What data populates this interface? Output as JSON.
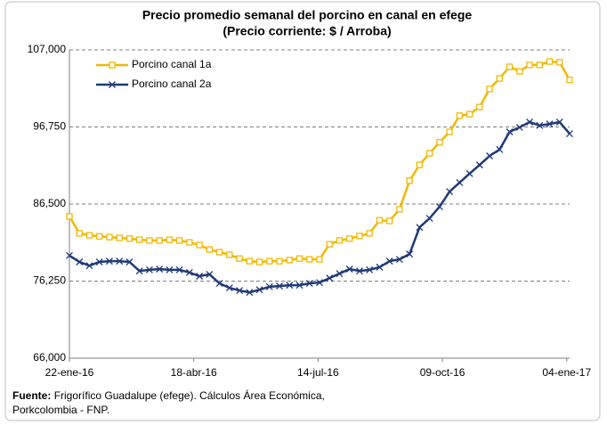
{
  "chart_data": {
    "type": "line",
    "title": [
      "Precio promedio semanal del porcino en canal en efege",
      "(Precio corriente: $ / Arroba)"
    ],
    "x": [
      "2016-01-22",
      "2016-01-29",
      "2016-02-05",
      "2016-02-12",
      "2016-02-19",
      "2016-02-26",
      "2016-03-04",
      "2016-03-11",
      "2016-03-18",
      "2016-03-25",
      "2016-04-01",
      "2016-04-08",
      "2016-04-15",
      "2016-04-22",
      "2016-04-29",
      "2016-05-06",
      "2016-05-13",
      "2016-05-20",
      "2016-05-27",
      "2016-06-03",
      "2016-06-10",
      "2016-06-17",
      "2016-06-24",
      "2016-07-01",
      "2016-07-08",
      "2016-07-15",
      "2016-07-22",
      "2016-07-29",
      "2016-08-05",
      "2016-08-12",
      "2016-08-19",
      "2016-08-26",
      "2016-09-02",
      "2016-09-09",
      "2016-09-16",
      "2016-09-23",
      "2016-09-30",
      "2016-10-07",
      "2016-10-14",
      "2016-10-21",
      "2016-10-28",
      "2016-11-04",
      "2016-11-11",
      "2016-11-18",
      "2016-11-25",
      "2016-12-02",
      "2016-12-09",
      "2016-12-16",
      "2016-12-23",
      "2016-12-30",
      "2017-01-06"
    ],
    "series": [
      {
        "name": "Porcino canal 1a",
        "color": "#f2b705",
        "marker": "square",
        "values": [
          84850,
          82600,
          82350,
          82200,
          82100,
          82000,
          81900,
          81750,
          81650,
          81650,
          81750,
          81650,
          81400,
          81050,
          80450,
          80100,
          79750,
          79250,
          78900,
          78800,
          78900,
          78900,
          79050,
          79250,
          79150,
          79150,
          81150,
          81650,
          81900,
          82250,
          82600,
          84350,
          84250,
          85800,
          89600,
          91700,
          93250,
          94700,
          96100,
          98250,
          98450,
          99400,
          101800,
          103200,
          104750,
          104150,
          105000,
          105000,
          105450,
          105350,
          103000
        ]
      },
      {
        "name": "Porcino canal 2a",
        "color": "#1f3a78",
        "marker": "x",
        "values": [
          79650,
          78800,
          78300,
          78800,
          78900,
          78900,
          78800,
          77600,
          77750,
          77850,
          77750,
          77750,
          77400,
          76900,
          77150,
          75950,
          75350,
          75000,
          74750,
          75100,
          75500,
          75600,
          75700,
          75700,
          75950,
          76050,
          76650,
          77250,
          77850,
          77600,
          77750,
          78100,
          78900,
          79150,
          79850,
          83400,
          84600,
          86150,
          88150,
          89350,
          90550,
          91700,
          92900,
          93750,
          96100,
          96700,
          97400,
          96950,
          97150,
          97400,
          95850
        ]
      }
    ],
    "xlim": [
      "2016-01-22",
      "2017-01-06"
    ],
    "xticks": [
      {
        "value": "2016-01-22",
        "label": "22-ene-16"
      },
      {
        "value": "2016-04-18",
        "label": "18-abr-16"
      },
      {
        "value": "2016-07-14",
        "label": "14-jul-16"
      },
      {
        "value": "2016-10-09",
        "label": "09-oct-16"
      },
      {
        "value": "2017-01-04",
        "label": "04-ene-17"
      }
    ],
    "ylim": [
      66000,
      107000
    ],
    "yticks": [
      {
        "value": 66000,
        "label": "66,000"
      },
      {
        "value": 76250,
        "label": "76,250"
      },
      {
        "value": 86500,
        "label": "86,500"
      },
      {
        "value": 96750,
        "label": "96,750"
      },
      {
        "value": 107000,
        "label": "107,000"
      }
    ],
    "grid": true,
    "grid_style": "dashed",
    "legend": "top-left",
    "source_label": "Fuente:",
    "source": [
      "Frigorífico Guadalupe (efege). Cálculos Área Económica,",
      "Porkcolombia  - FNP."
    ]
  }
}
